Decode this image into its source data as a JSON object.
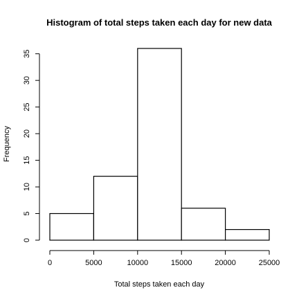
{
  "chart_data": {
    "type": "bar",
    "title": "Histogram of total steps taken each day for new data",
    "xlabel": "Total steps taken each day",
    "ylabel": "Frequency",
    "bins": [
      {
        "from": 0,
        "to": 5000,
        "count": 5
      },
      {
        "from": 5000,
        "to": 10000,
        "count": 12
      },
      {
        "from": 10000,
        "to": 15000,
        "count": 36
      },
      {
        "from": 15000,
        "to": 20000,
        "count": 6
      },
      {
        "from": 20000,
        "to": 25000,
        "count": 2
      }
    ],
    "xlim": [
      0,
      25000
    ],
    "ylim": [
      0,
      36
    ],
    "x_ticks": [
      0,
      5000,
      10000,
      15000,
      20000,
      25000
    ],
    "y_ticks": [
      0,
      5,
      10,
      15,
      20,
      25,
      30,
      35
    ],
    "grid": false,
    "colors": {
      "bar_fill": "#ffffff",
      "bar_stroke": "#000000"
    }
  }
}
